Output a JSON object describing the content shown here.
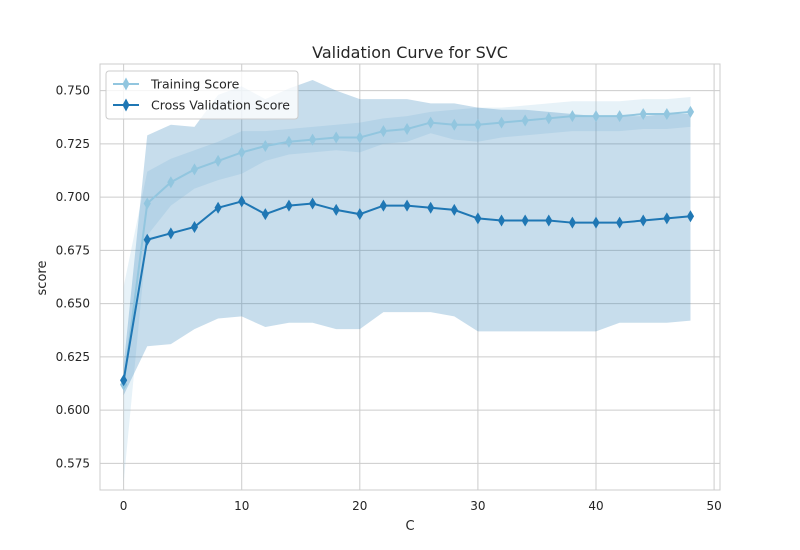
{
  "chart_data": {
    "type": "line",
    "title": "Validation Curve for SVC",
    "xlabel": "C",
    "ylabel": "score",
    "xlim": [
      -2,
      50.5
    ],
    "ylim": [
      0.5625,
      0.7625
    ],
    "xticks": [
      0,
      10,
      20,
      30,
      40,
      50
    ],
    "yticks": [
      0.575,
      0.6,
      0.625,
      0.65,
      0.675,
      0.7,
      0.725,
      0.75
    ],
    "ytick_labels": [
      "0.575",
      "0.600",
      "0.625",
      "0.650",
      "0.675",
      "0.700",
      "0.725",
      "0.750"
    ],
    "grid": true,
    "legend_position": "top-left",
    "x": [
      0,
      2,
      4,
      6,
      8,
      10,
      12,
      14,
      16,
      18,
      20,
      22,
      24,
      26,
      28,
      30,
      32,
      34,
      36,
      38,
      40,
      42,
      44,
      46,
      48
    ],
    "series": [
      {
        "name": "Training Score",
        "color": "#92c6df",
        "values": [
          0.612,
          0.697,
          0.707,
          0.713,
          0.717,
          0.721,
          0.724,
          0.726,
          0.727,
          0.728,
          0.728,
          0.731,
          0.732,
          0.735,
          0.734,
          0.734,
          0.735,
          0.736,
          0.737,
          0.738,
          0.738,
          0.738,
          0.739,
          0.739,
          0.74
        ],
        "band_upper": [
          0.658,
          0.712,
          0.718,
          0.722,
          0.726,
          0.731,
          0.731,
          0.732,
          0.733,
          0.734,
          0.735,
          0.737,
          0.738,
          0.74,
          0.741,
          0.742,
          0.742,
          0.743,
          0.744,
          0.745,
          0.745,
          0.745,
          0.746,
          0.746,
          0.747
        ],
        "band_lower": [
          0.566,
          0.682,
          0.696,
          0.704,
          0.708,
          0.711,
          0.717,
          0.72,
          0.721,
          0.722,
          0.721,
          0.725,
          0.726,
          0.73,
          0.727,
          0.726,
          0.728,
          0.729,
          0.73,
          0.731,
          0.731,
          0.731,
          0.732,
          0.732,
          0.733
        ]
      },
      {
        "name": "Cross Validation Score",
        "color": "#1f77b4",
        "values": [
          0.614,
          0.68,
          0.683,
          0.686,
          0.695,
          0.698,
          0.692,
          0.696,
          0.697,
          0.694,
          0.692,
          0.696,
          0.696,
          0.695,
          0.694,
          0.69,
          0.689,
          0.689,
          0.689,
          0.688,
          0.688,
          0.688,
          0.689,
          0.69,
          0.691
        ],
        "band_upper": [
          0.621,
          0.729,
          0.734,
          0.733,
          0.748,
          0.752,
          0.746,
          0.751,
          0.755,
          0.75,
          0.746,
          0.746,
          0.746,
          0.744,
          0.744,
          0.742,
          0.741,
          0.741,
          0.74,
          0.739,
          0.738,
          0.738,
          0.738,
          0.739,
          0.739
        ],
        "band_lower": [
          0.607,
          0.63,
          0.631,
          0.638,
          0.643,
          0.644,
          0.639,
          0.641,
          0.641,
          0.638,
          0.638,
          0.646,
          0.646,
          0.646,
          0.644,
          0.637,
          0.637,
          0.637,
          0.637,
          0.637,
          0.637,
          0.641,
          0.641,
          0.641,
          0.642
        ]
      }
    ]
  }
}
